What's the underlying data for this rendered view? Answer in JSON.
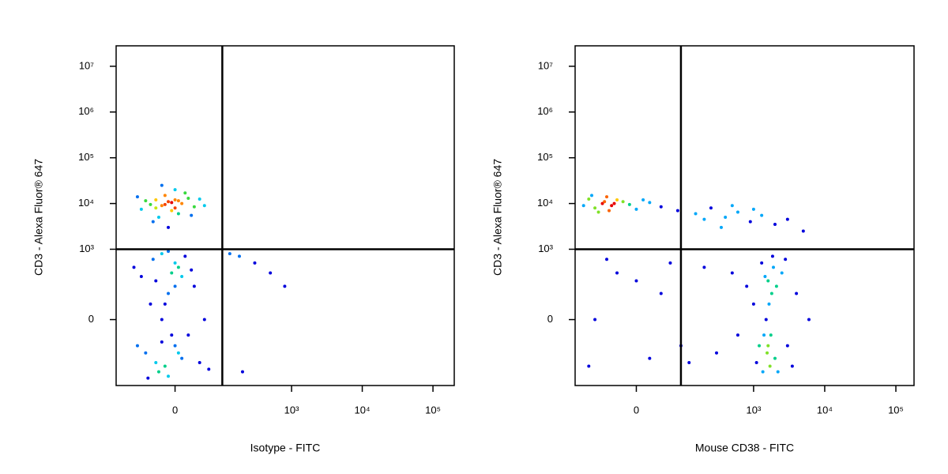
{
  "chart_data": [
    {
      "type": "scatter",
      "xlabel": "Isotype - FITC",
      "ylabel": "CD3 - Alexa Fluor® 647",
      "xscale": "asinh",
      "yscale": "asinh",
      "xlim": [
        -150,
        200000
      ],
      "ylim": [
        -800,
        28000000
      ],
      "xticks": [
        0,
        {
          "value": 1000,
          "label": "10³"
        },
        {
          "value": 10000,
          "label": "10⁴"
        },
        {
          "value": 100000,
          "label": "10⁵"
        }
      ],
      "yticks": [
        0,
        {
          "value": 1000,
          "label": "10³"
        },
        {
          "value": 10000,
          "label": "10⁴"
        },
        {
          "value": 100000,
          "label": "10⁵"
        },
        {
          "value": 1000000,
          "label": "10⁶"
        },
        {
          "value": 10000000,
          "label": "10⁷"
        }
      ],
      "gate": {
        "x": 100,
        "y": 1000
      },
      "x": [
        -20,
        -10,
        0,
        -30,
        10,
        -5,
        -40,
        20,
        -15,
        5,
        -25,
        30,
        -50,
        0,
        -35,
        40,
        -60,
        15,
        -10,
        -20,
        50,
        -70,
        25,
        -5,
        -15,
        5,
        -30,
        0,
        -20,
        -10,
        0,
        -30,
        10,
        -5,
        -40,
        20,
        -15,
        5,
        -25,
        30,
        -50,
        0,
        -35,
        40,
        -60,
        15,
        -10,
        -20,
        50,
        -70,
        25,
        -5,
        -15,
        5,
        -30,
        0,
        -10,
        -80,
        60,
        -45,
        10,
        -20,
        130,
        300,
        500,
        800,
        200,
        180
      ],
      "y": [
        9000,
        11000,
        8000,
        12000,
        10000,
        7000,
        9500,
        13000,
        15000,
        6000,
        5000,
        8500,
        11500,
        20000,
        4000,
        12500,
        7500,
        17000,
        3000,
        25000,
        9000,
        14000,
        5500,
        10500,
        9500,
        11500,
        8000,
        12000,
        0,
        100,
        -100,
        200,
        -200,
        300,
        50,
        -50,
        -300,
        400,
        -400,
        150,
        -150,
        500,
        600,
        -250,
        250,
        700,
        -500,
        800,
        0,
        -100,
        350,
        -50,
        50,
        -150,
        -250,
        150,
        900,
        400,
        -350,
        -550,
        250,
        -80,
        800,
        500,
        300,
        150,
        -400,
        700
      ]
    },
    {
      "type": "scatter",
      "xlabel": "Mouse CD38 - FITC",
      "ylabel": "CD3 - Alexa Fluor® 647",
      "xscale": "asinh",
      "yscale": "asinh",
      "xlim": [
        -160,
        180000
      ],
      "ylim": [
        -800,
        28000000
      ],
      "xticks": [
        0,
        {
          "value": 1000,
          "label": "10³"
        },
        {
          "value": 10000,
          "label": "10⁴"
        },
        {
          "value": 100000,
          "label": "10⁵"
        }
      ],
      "yticks": [
        0,
        {
          "value": 1000,
          "label": "10³"
        },
        {
          "value": 10000,
          "label": "10⁴"
        },
        {
          "value": 100000,
          "label": "10⁵"
        },
        {
          "value": 1000000,
          "label": "10⁶"
        },
        {
          "value": 10000000,
          "label": "10⁷"
        }
      ],
      "gate": {
        "x": 90,
        "y": 1000
      },
      "x": [
        -60,
        -40,
        -20,
        -80,
        -30,
        -10,
        -100,
        0,
        -50,
        -120,
        20,
        -70,
        -35,
        -55,
        40,
        -90,
        10,
        -45,
        80,
        150,
        250,
        400,
        600,
        900,
        1300,
        2000,
        3000,
        500,
        200,
        1000,
        5000,
        350,
        1500,
        1800,
        1200,
        2000,
        1600,
        1400,
        2500,
        1000,
        1700,
        1900,
        3000,
        800,
        1300,
        2200,
        4000,
        1550,
        1650,
        1100,
        2800,
        600,
        6000,
        1450,
        1750,
        500,
        2100,
        1350,
        1850,
        3500,
        1600,
        -80,
        -30,
        20,
        60,
        -100,
        0,
        90,
        -50,
        40,
        120,
        200,
        300
      ],
      "y": [
        10000,
        9000,
        11000,
        8000,
        12000,
        9500,
        12500,
        7500,
        14000,
        9000,
        10500,
        6500,
        10000,
        11000,
        8500,
        15000,
        12000,
        7000,
        7000,
        6000,
        8000,
        5000,
        6500,
        4000,
        5500,
        3500,
        4500,
        9000,
        4500,
        7500,
        2500,
        3000,
        0,
        100,
        -100,
        -200,
        200,
        -50,
        300,
        50,
        -300,
        400,
        -100,
        150,
        500,
        -400,
        100,
        -150,
        50,
        -250,
        600,
        -50,
        0,
        250,
        -50,
        300,
        150,
        -400,
        700,
        -300,
        -100,
        0,
        300,
        -200,
        500,
        -300,
        200,
        -100,
        600,
        100,
        -250,
        400,
        -150
      ]
    }
  ]
}
